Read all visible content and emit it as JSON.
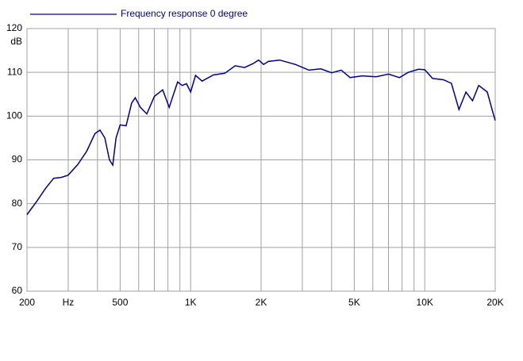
{
  "chart_data": {
    "type": "line",
    "title": "Frequency response 0 degree",
    "y_label": "dB",
    "log_x": true,
    "grid": true,
    "xlim": [
      200,
      20000
    ],
    "xticks": [
      200,
      {
        "value": 300,
        "label": "Hz"
      },
      {
        "value": 400,
        "label": ""
      },
      500,
      {
        "value": 600,
        "label": ""
      },
      {
        "value": 700,
        "label": ""
      },
      {
        "value": 800,
        "label": ""
      },
      {
        "value": 900,
        "label": ""
      },
      {
        "value": 1000,
        "label": "1K"
      },
      {
        "value": 2000,
        "label": "2K"
      },
      {
        "value": 3000,
        "label": ""
      },
      {
        "value": 4000,
        "label": ""
      },
      {
        "value": 5000,
        "label": "5K"
      },
      {
        "value": 6000,
        "label": ""
      },
      {
        "value": 7000,
        "label": ""
      },
      {
        "value": 8000,
        "label": ""
      },
      {
        "value": 9000,
        "label": ""
      },
      {
        "value": 10000,
        "label": "10K"
      },
      {
        "value": 20000,
        "label": "20K"
      }
    ],
    "ylim": [
      60,
      120
    ],
    "yticks": [
      60,
      70,
      80,
      90,
      100,
      110,
      120
    ],
    "x": [
      200,
      220,
      240,
      260,
      280,
      300,
      330,
      360,
      390,
      410,
      430,
      450,
      465,
      480,
      500,
      530,
      560,
      580,
      610,
      650,
      700,
      760,
      810,
      880,
      920,
      960,
      1000,
      1050,
      1120,
      1250,
      1400,
      1550,
      1700,
      1850,
      1950,
      2050,
      2150,
      2400,
      2800,
      3200,
      3600,
      4000,
      4400,
      4800,
      5400,
      6200,
      7000,
      7800,
      8500,
      9400,
      10000,
      10800,
      12000,
      13000,
      14000,
      15000,
      16000,
      17000,
      18500,
      19500,
      20000
    ],
    "series": [
      {
        "name": "Frequency response 0 degree",
        "color": "#00008b",
        "values": [
          77.5,
          80.5,
          83.5,
          85.8,
          86,
          86.5,
          89,
          92,
          96,
          96.8,
          95,
          90,
          88.8,
          95,
          98,
          97.8,
          103,
          104.2,
          102,
          100.5,
          104.5,
          106,
          102,
          107.8,
          107,
          107.4,
          105.5,
          109.3,
          108,
          109.4,
          109.8,
          111.5,
          111.1,
          112,
          112.8,
          111.8,
          112.5,
          112.8,
          111.8,
          110.5,
          110.8,
          109.9,
          110.5,
          108.8,
          109.2,
          109,
          109.6,
          108.8,
          110,
          110.7,
          110.6,
          108.6,
          108.3,
          107.5,
          101.5,
          105.5,
          103.5,
          107,
          105.5,
          101,
          99
        ]
      }
    ]
  }
}
